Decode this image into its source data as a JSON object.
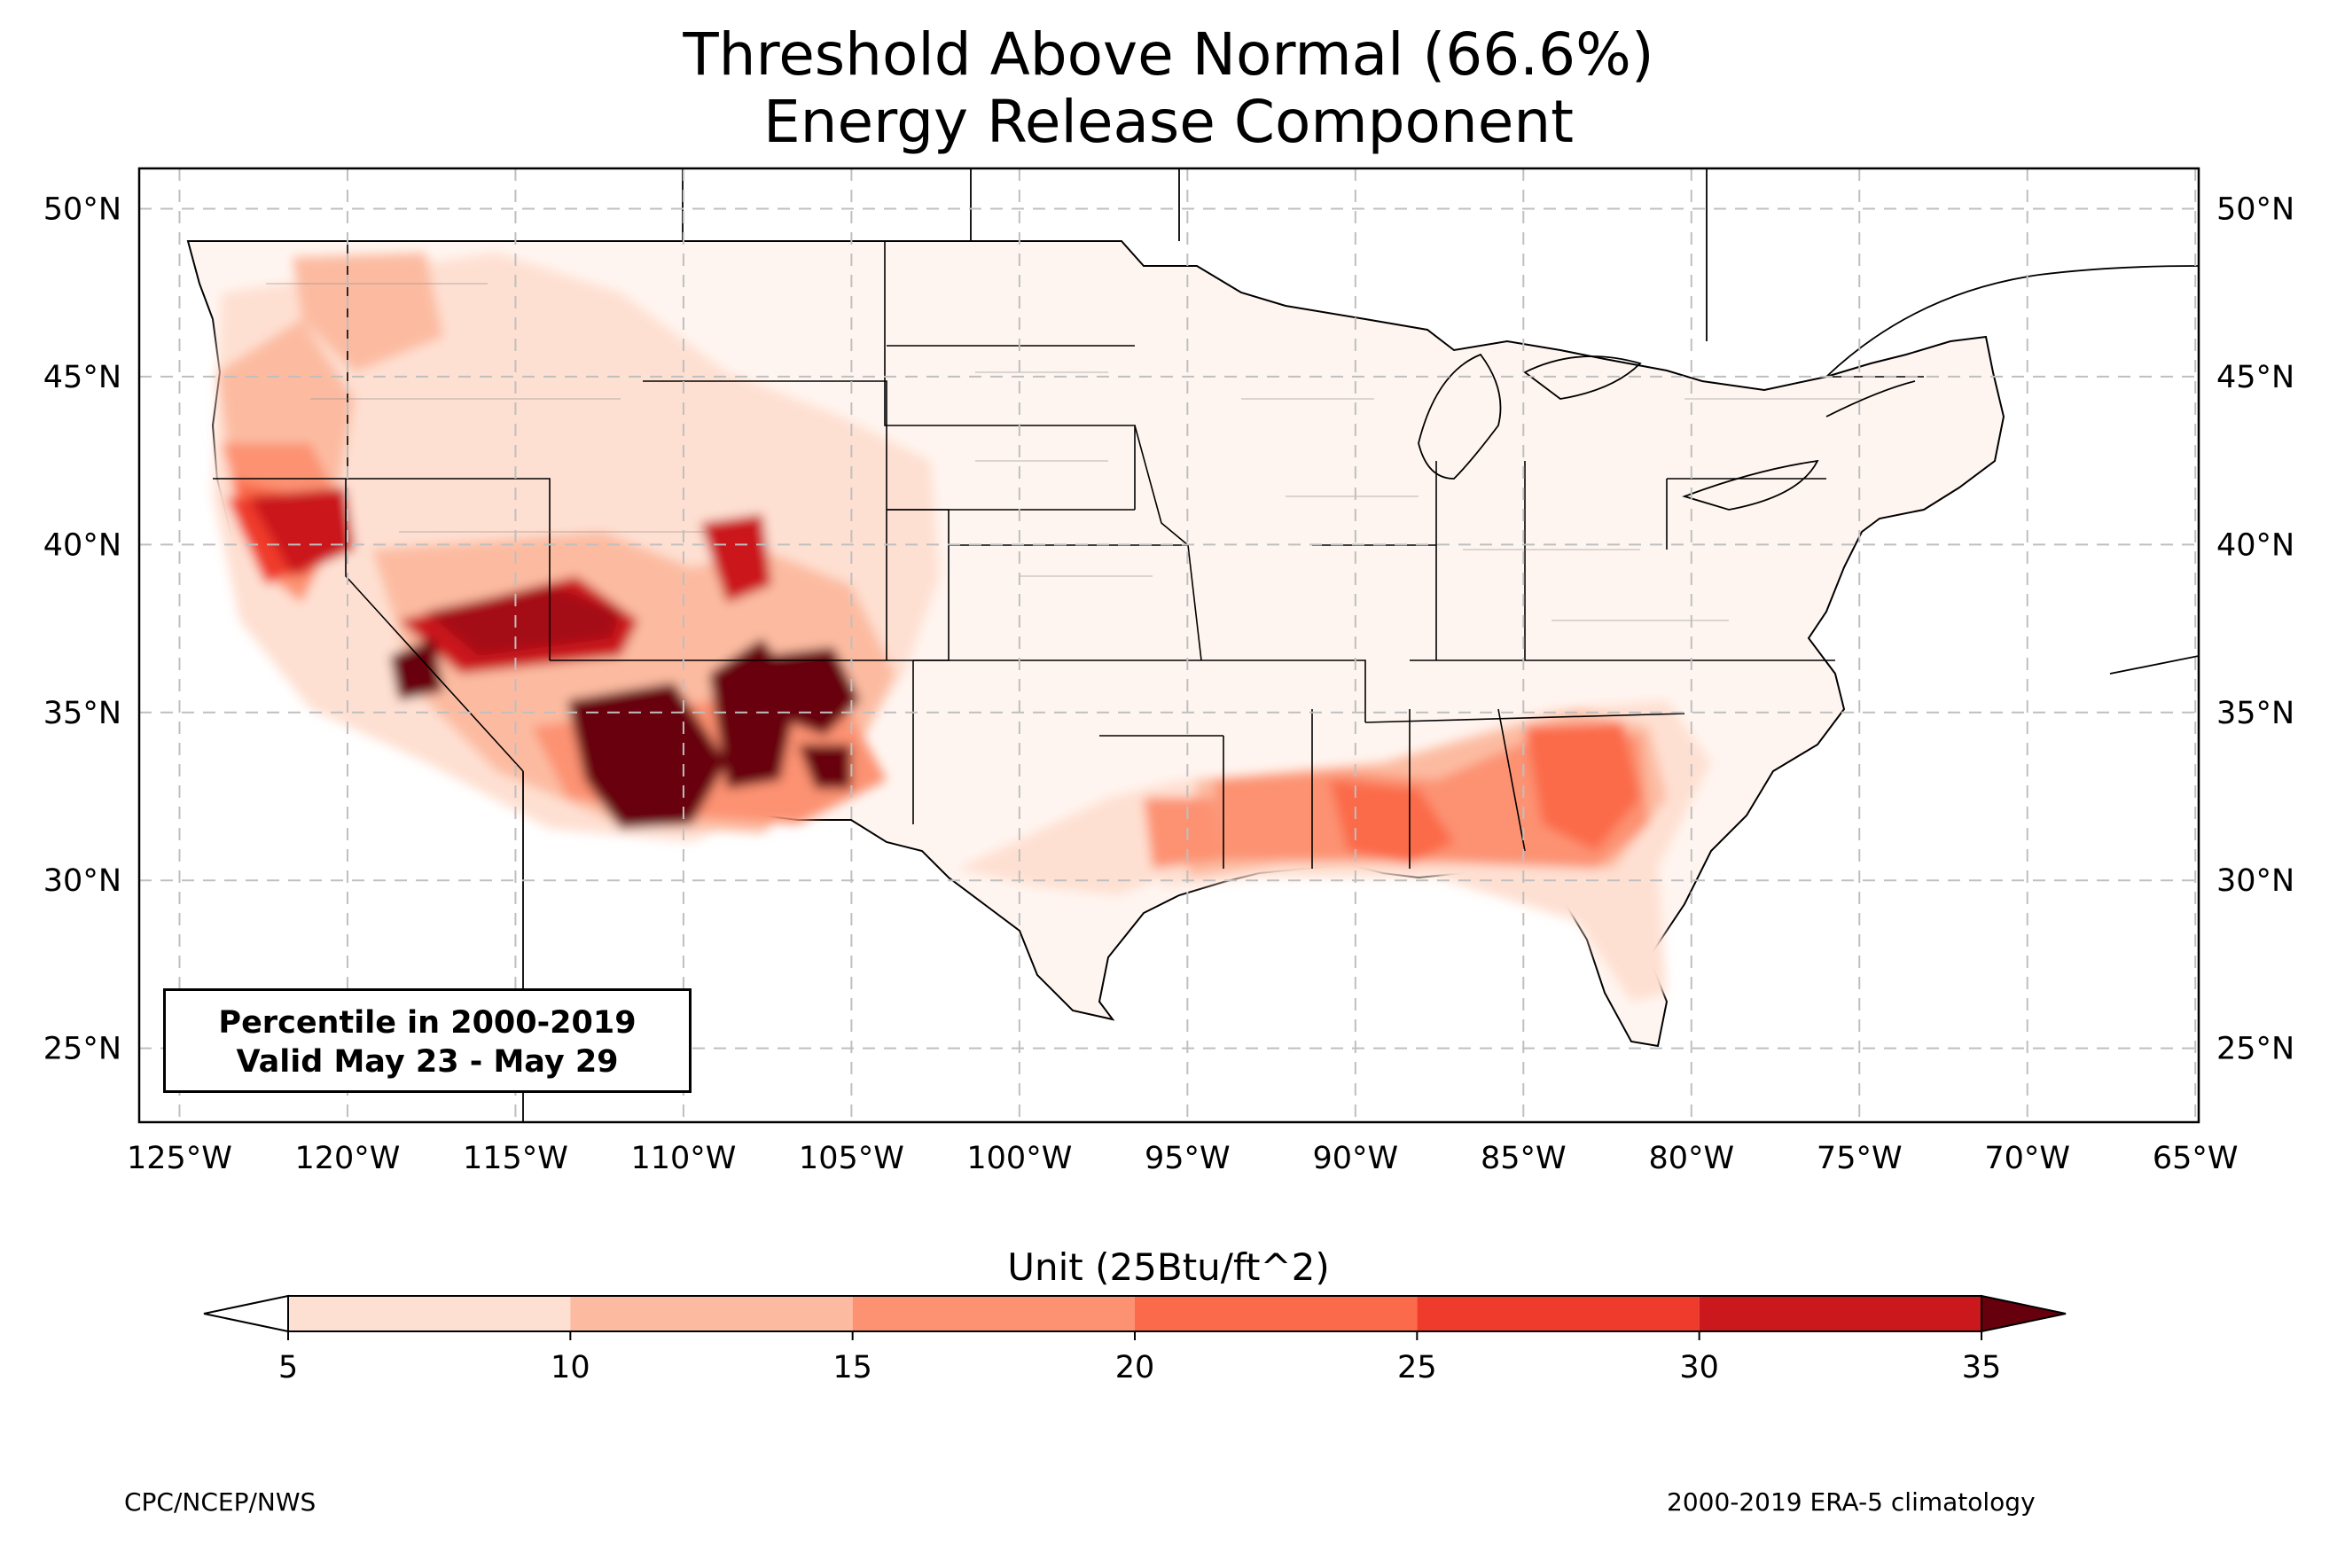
{
  "title_line1": "Threshold Above Normal (66.6%)",
  "title_line2": "Energy Release Component",
  "info_box": {
    "line1": "Percentile in 2000-2019",
    "line2": "Valid May 23 - May 29"
  },
  "map": {
    "lon_range": [
      -126.2,
      -64.9
    ],
    "lat_range": [
      22.8,
      51.2
    ],
    "lon_ticks": [
      "125°W",
      "120°W",
      "115°W",
      "110°W",
      "105°W",
      "100°W",
      "95°W",
      "90°W",
      "85°W",
      "80°W",
      "75°W",
      "70°W",
      "65°W"
    ],
    "lat_ticks": [
      "25°N",
      "30°N",
      "35°N",
      "40°N",
      "45°N",
      "50°N"
    ],
    "grid": "dashed"
  },
  "colorbar": {
    "label": "Unit (25Btu/ft^2)",
    "ticks": [
      "5",
      "10",
      "15",
      "20",
      "25",
      "30",
      "35"
    ],
    "colors": [
      "#fee0d2",
      "#fcbba1",
      "#fc9272",
      "#fb6a4a",
      "#ef3b2c",
      "#cb181d",
      "#a50f15",
      "#67000d"
    ],
    "under_color": "#ffffff",
    "over_color": "#67000d",
    "extend": "both"
  },
  "credit_left": "CPC/NCEP/NWS",
  "credit_right": "2000-2019 ERA-5 climatology"
}
